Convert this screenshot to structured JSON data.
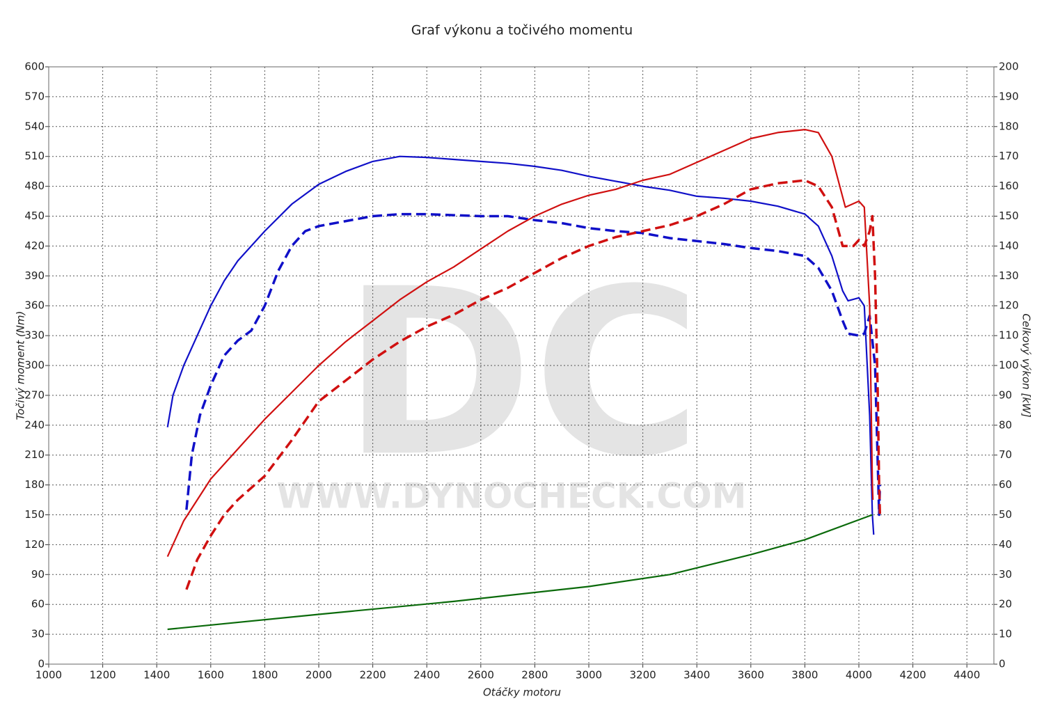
{
  "chart_data": {
    "type": "line",
    "title": "Graf výkonu a točivého momentu",
    "xlabel": "Otáčky motoru",
    "ylabel": "Točivý moment (Nm)",
    "y2label": "Celkový výkon [kW]",
    "watermark": [
      "DC",
      "WWW.DYNOCHECK.COM"
    ],
    "xlim": [
      1000,
      4500
    ],
    "xticks": [
      1000,
      1200,
      1400,
      1600,
      1800,
      2000,
      2200,
      2400,
      2600,
      2800,
      3000,
      3200,
      3400,
      3600,
      3800,
      4000,
      4200,
      4400
    ],
    "ylim": [
      0,
      600
    ],
    "yticks": [
      0,
      30,
      60,
      90,
      120,
      150,
      180,
      210,
      240,
      270,
      300,
      330,
      360,
      390,
      420,
      450,
      480,
      510,
      540,
      570,
      600
    ],
    "y2lim": [
      0,
      200
    ],
    "y2ticks": [
      0,
      10,
      20,
      30,
      40,
      50,
      60,
      70,
      80,
      90,
      100,
      110,
      120,
      130,
      140,
      150,
      160,
      170,
      180,
      190,
      200
    ],
    "grid": true,
    "series": [
      {
        "color": "#1010c8",
        "dashed": false,
        "axis": "y",
        "x": [
          1440,
          1460,
          1500,
          1550,
          1600,
          1650,
          1700,
          1800,
          1900,
          2000,
          2100,
          2200,
          2300,
          2400,
          2500,
          2600,
          2700,
          2800,
          2900,
          3000,
          3100,
          3200,
          3300,
          3400,
          3500,
          3600,
          3700,
          3800,
          3850,
          3900,
          3940,
          3960,
          4000,
          4020,
          4040,
          4050,
          4055
        ],
        "values": [
          238,
          270,
          300,
          330,
          360,
          385,
          405,
          435,
          462,
          482,
          495,
          505,
          510,
          509,
          507,
          505,
          503,
          500,
          496,
          490,
          485,
          480,
          476,
          470,
          468,
          465,
          460,
          452,
          440,
          410,
          375,
          365,
          368,
          360,
          250,
          150,
          130
        ]
      },
      {
        "color": "#1010c8",
        "dashed": true,
        "axis": "y",
        "x": [
          1510,
          1530,
          1560,
          1600,
          1650,
          1700,
          1750,
          1800,
          1850,
          1900,
          1950,
          2000,
          2100,
          2200,
          2300,
          2400,
          2500,
          2600,
          2700,
          2800,
          2900,
          3000,
          3100,
          3200,
          3300,
          3400,
          3500,
          3600,
          3700,
          3800,
          3850,
          3900,
          3940,
          3960,
          4000,
          4020,
          4040,
          4060,
          4070,
          4075,
          4078
        ],
        "values": [
          155,
          210,
          250,
          280,
          310,
          325,
          335,
          360,
          395,
          420,
          435,
          440,
          445,
          450,
          452,
          452,
          451,
          450,
          450,
          446,
          443,
          438,
          435,
          433,
          428,
          425,
          422,
          418,
          415,
          410,
          398,
          375,
          345,
          332,
          330,
          332,
          350,
          300,
          200,
          150,
          180
        ]
      },
      {
        "color": "#d01010",
        "dashed": false,
        "axis": "y2",
        "x": [
          1440,
          1500,
          1600,
          1700,
          1800,
          1900,
          2000,
          2100,
          2200,
          2300,
          2400,
          2500,
          2600,
          2700,
          2800,
          2900,
          3000,
          3100,
          3200,
          3300,
          3400,
          3500,
          3600,
          3700,
          3800,
          3850,
          3900,
          3950,
          4000,
          4020,
          4040,
          4050,
          4052
        ],
        "values": [
          36,
          48,
          62,
          72,
          82,
          91,
          100,
          108,
          115,
          122,
          128,
          133,
          139,
          145,
          150,
          154,
          157,
          159,
          162,
          164,
          168,
          172,
          176,
          178,
          179,
          178,
          170,
          153,
          155,
          153,
          120,
          60,
          55
        ]
      },
      {
        "color": "#d01010",
        "dashed": true,
        "axis": "y2",
        "x": [
          1510,
          1550,
          1600,
          1650,
          1700,
          1800,
          1900,
          2000,
          2100,
          2200,
          2300,
          2400,
          2500,
          2600,
          2700,
          2800,
          2900,
          3000,
          3100,
          3200,
          3300,
          3400,
          3500,
          3600,
          3700,
          3800,
          3850,
          3900,
          3940,
          3980,
          4000,
          4020,
          4040,
          4050,
          4060,
          4070,
          4075,
          4078
        ],
        "values": [
          25,
          35,
          43,
          50,
          55,
          63,
          75,
          88,
          95,
          102,
          108,
          113,
          117,
          122,
          126,
          131,
          136,
          140,
          143,
          145,
          147,
          150,
          154,
          159,
          161,
          162,
          160,
          153,
          140,
          140,
          142,
          140,
          145,
          150,
          130,
          90,
          60,
          50
        ]
      },
      {
        "color": "#0a6a0a",
        "dashed": false,
        "axis": "y",
        "x": [
          1440,
          2000,
          2500,
          3000,
          3300,
          3600,
          3800,
          4050
        ],
        "values": [
          35,
          50,
          63,
          78,
          90,
          110,
          125,
          150
        ]
      }
    ]
  }
}
